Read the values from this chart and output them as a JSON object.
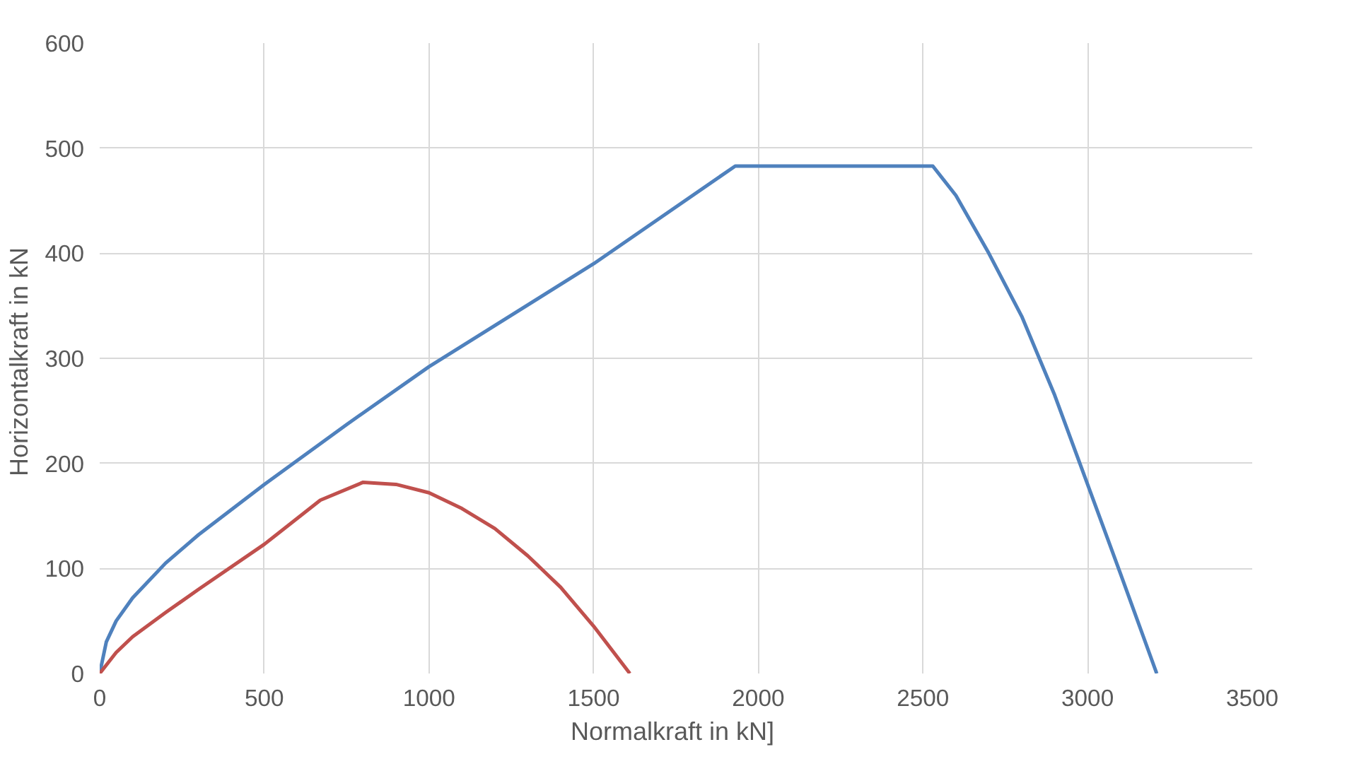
{
  "chart_data": {
    "type": "line",
    "xlabel": "Normalkraft  in kN]",
    "ylabel": "Horizontalkraft  in kN",
    "xlim": [
      0,
      3500
    ],
    "xticks": [
      0,
      500,
      1000,
      1500,
      2000,
      2500,
      3000,
      3500
    ],
    "ylim": [
      0,
      600
    ],
    "yticks": [
      0,
      100,
      200,
      300,
      400,
      500,
      600
    ],
    "grid": true,
    "marker": "none",
    "line_style": "solid",
    "series": [
      {
        "color": "#4f81bd",
        "x": [
          0,
          20,
          50,
          100,
          200,
          300,
          500,
          750,
          1000,
          1500,
          1930,
          2530,
          2600,
          2700,
          2800,
          2900,
          3000,
          3100,
          3210
        ],
        "values": [
          0,
          30,
          50,
          72,
          105,
          132,
          180,
          237,
          292,
          390,
          483,
          483,
          455,
          400,
          340,
          265,
          180,
          95,
          0
        ]
      },
      {
        "color": "#c0504d",
        "x": [
          0,
          50,
          100,
          200,
          300,
          500,
          670,
          800,
          900,
          1000,
          1100,
          1200,
          1300,
          1400,
          1500,
          1610
        ],
        "values": [
          0,
          20,
          35,
          58,
          80,
          123,
          165,
          182,
          180,
          172,
          157,
          138,
          112,
          82,
          45,
          0
        ]
      }
    ]
  }
}
